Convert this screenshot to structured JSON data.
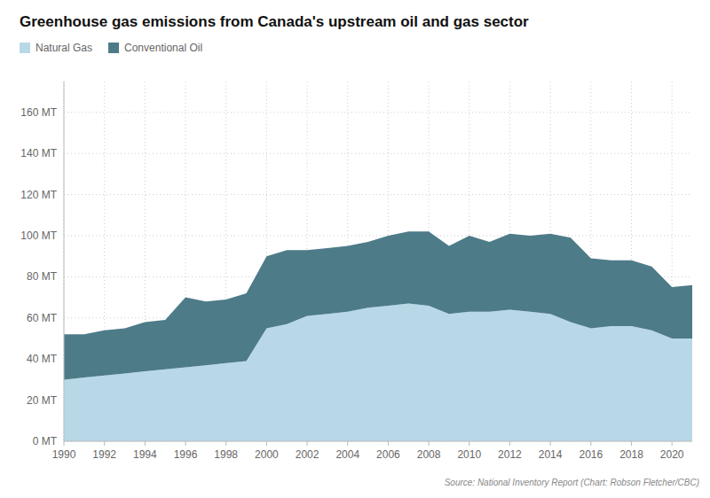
{
  "chart_data": {
    "type": "area",
    "stacked": true,
    "title": "Greenhouse gas emissions from Canada's upstream oil and gas sector",
    "annotations": [
      "Source: National Inventory Report (Chart: Robson Fletcher/CBC)"
    ],
    "x": [
      1990,
      1991,
      1992,
      1993,
      1994,
      1995,
      1996,
      1997,
      1998,
      1999,
      2000,
      2001,
      2002,
      2003,
      2004,
      2005,
      2006,
      2007,
      2008,
      2009,
      2010,
      2011,
      2012,
      2013,
      2014,
      2015,
      2016,
      2017,
      2018,
      2019,
      2020,
      2021
    ],
    "series": [
      {
        "name": "Natural Gas",
        "color": "#b8d8e8",
        "values": [
          30,
          31,
          32,
          33,
          34,
          35,
          36,
          37,
          38,
          39,
          55,
          57,
          61,
          62,
          63,
          65,
          66,
          67,
          66,
          62,
          63,
          63,
          64,
          63,
          62,
          58,
          55,
          56,
          56,
          54,
          50,
          50
        ]
      },
      {
        "name": "Conventional Oil",
        "color": "#4d7b88",
        "values": [
          22,
          21,
          22,
          22,
          24,
          24,
          34,
          31,
          31,
          33,
          35,
          36,
          32,
          32,
          32,
          32,
          34,
          35,
          36,
          33,
          37,
          34,
          37,
          37,
          39,
          41,
          34,
          32,
          32,
          31,
          25,
          26
        ]
      }
    ],
    "xlim": [
      1990,
      2021
    ],
    "xticks": [
      1990,
      1992,
      1994,
      1996,
      1998,
      2000,
      2002,
      2004,
      2006,
      2008,
      2010,
      2012,
      2014,
      2016,
      2018,
      2020
    ],
    "ylim": [
      0,
      175
    ],
    "yticks": [
      {
        "value": 0,
        "label": "0 MT"
      },
      {
        "value": 20,
        "label": "20 MT"
      },
      {
        "value": 40,
        "label": "40 MT"
      },
      {
        "value": 60,
        "label": "60 MT"
      },
      {
        "value": 80,
        "label": "80 MT"
      },
      {
        "value": 100,
        "label": "100 MT"
      },
      {
        "value": 120,
        "label": "120 MT"
      },
      {
        "value": 140,
        "label": "140 MT"
      },
      {
        "value": 160,
        "label": "160 MT"
      }
    ],
    "grid": true,
    "legend": "top"
  }
}
